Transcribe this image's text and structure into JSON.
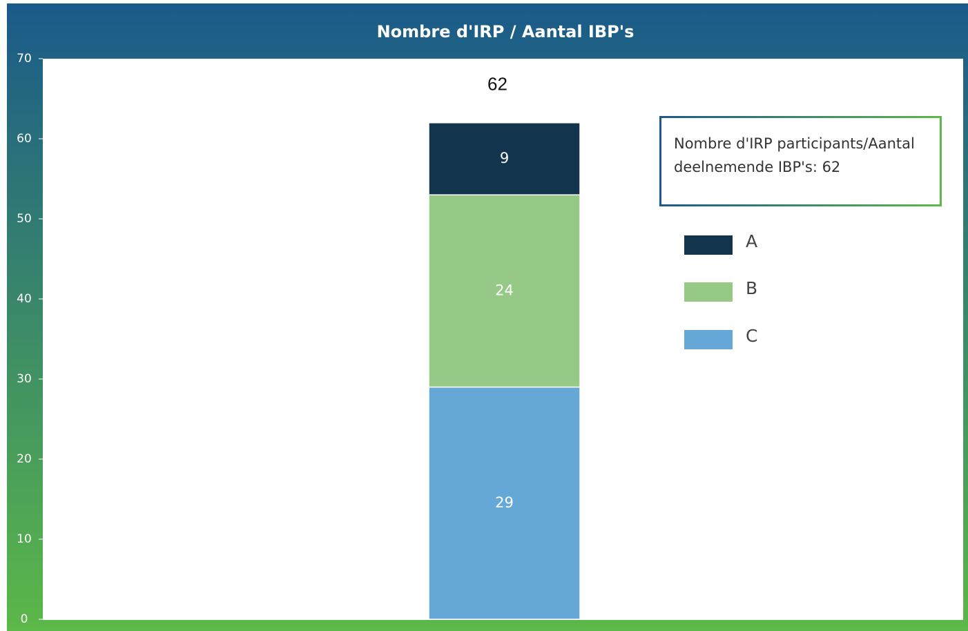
{
  "chart_data": {
    "type": "stacked-bar",
    "title": "Nombre d'IRP / Aantal IBP's",
    "categories": [
      null
    ],
    "series": [
      {
        "name": "A",
        "color": "#12344d",
        "values": [
          9
        ]
      },
      {
        "name": "B",
        "color": "#97c986",
        "values": [
          24
        ]
      },
      {
        "name": "C",
        "color": "#65a7d6",
        "values": [
          29
        ]
      }
    ],
    "totals": [
      62
    ],
    "annotation": "Nombre d'IRP participants/Aantal deelnemende IBP's: 62",
    "ylim": [
      0,
      70
    ],
    "yticks": [
      0,
      10,
      20,
      30,
      40,
      50,
      60,
      70
    ],
    "grid": false
  }
}
